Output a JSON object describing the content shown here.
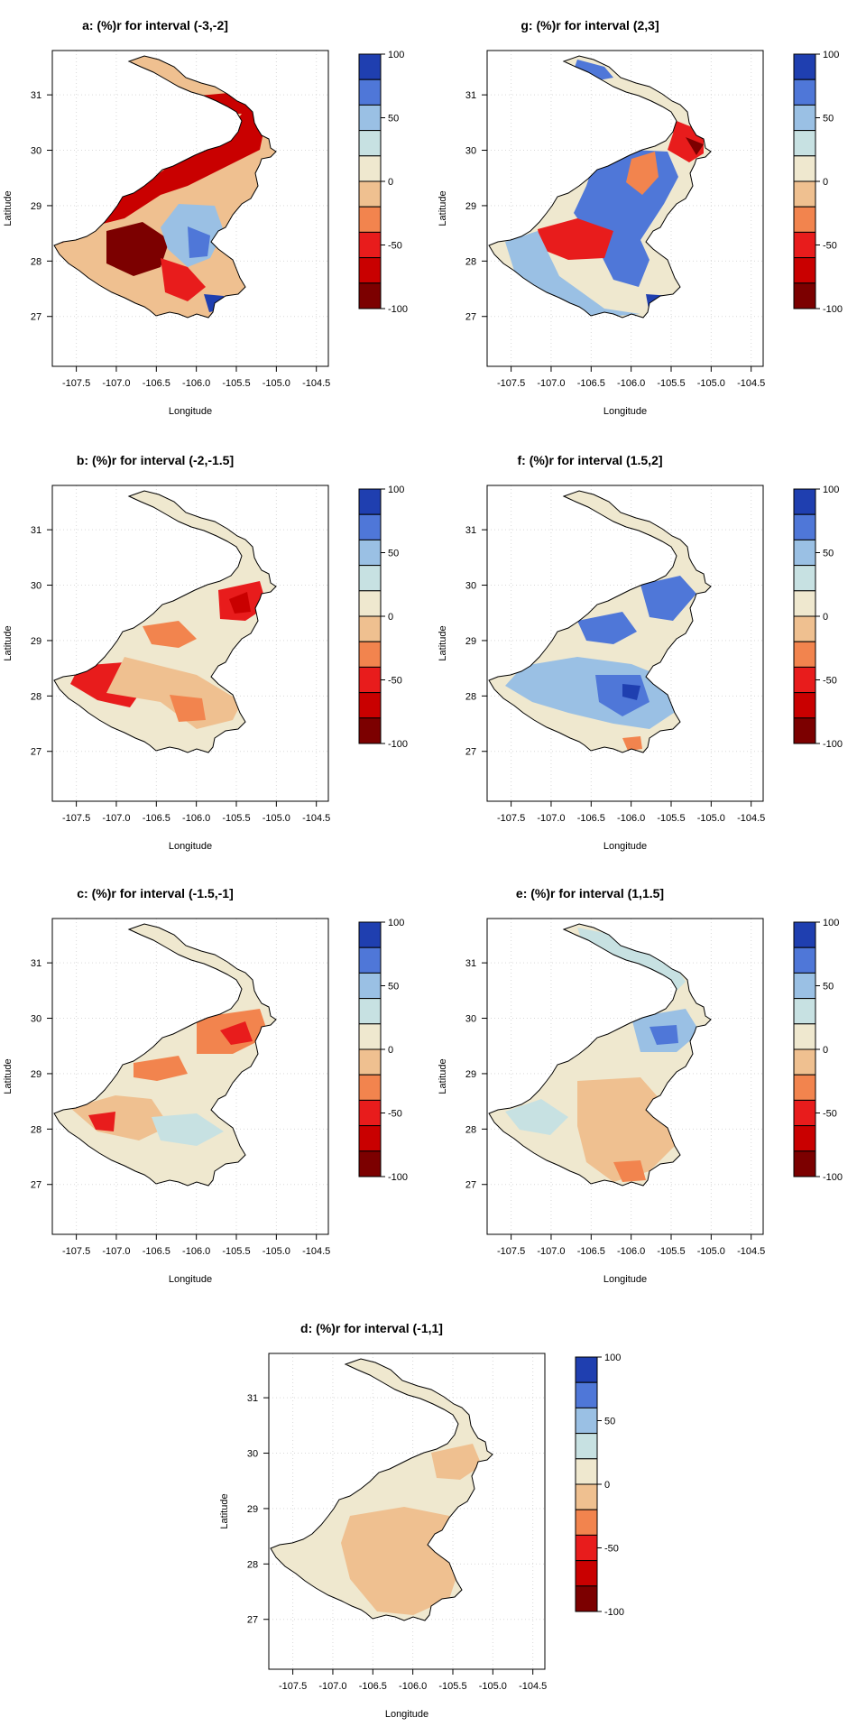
{
  "figure": {
    "xlabel": "Longitude",
    "ylabel": "Latitude",
    "x_ticks": [
      "-107.5",
      "-107.0",
      "-106.5",
      "-106.0",
      "-105.5",
      "-105.0",
      "-104.5"
    ],
    "y_ticks": [
      "27",
      "28",
      "29",
      "30",
      "31"
    ],
    "legend_ticks": [
      "100",
      "50",
      "0",
      "-50",
      "-100"
    ],
    "legend_colors": [
      "#1f3fb0",
      "#4f77d8",
      "#9ac0e4",
      "#c7e1e2",
      "#efe8cf",
      "#efc090",
      "#f2844e",
      "#e81c1c",
      "#c90000",
      "#7c0000"
    ],
    "boundary_color": "#000000"
  },
  "panels": [
    {
      "id": "a",
      "title": "a:   (%)r for interval (-3,-2]"
    },
    {
      "id": "g",
      "title": "g:   (%)r for interval (2,3]"
    },
    {
      "id": "b",
      "title": "b:   (%)r for interval (-2,-1.5]"
    },
    {
      "id": "f",
      "title": "f:   (%)r for interval (1.5,2]"
    },
    {
      "id": "c",
      "title": "c:   (%)r for interval (-1.5,-1]"
    },
    {
      "id": "e",
      "title": "e:   (%)r for interval (1,1.5]"
    },
    {
      "id": "d",
      "title": "d:   (%)r for interval (-1,1]"
    }
  ],
  "chart_data": [
    {
      "type": "heatmap",
      "title": "a:   (%)r for interval (-3,-2]",
      "xlabel": "Longitude",
      "ylabel": "Latitude",
      "xlim": [
        -107.8,
        -104.35
      ],
      "ylim": [
        26.1,
        31.8
      ],
      "color_scale": [
        -100,
        100
      ],
      "color_breaks": [
        -100,
        -80,
        -60,
        -40,
        -20,
        0,
        20,
        40,
        60,
        80,
        100
      ],
      "legend_ticks": [
        100,
        50,
        0,
        -50,
        -100
      ],
      "dominant": "negative, strong red to -100 in north and west; blue patches to +60 in south-centre"
    },
    {
      "type": "heatmap",
      "title": "g:   (%)r for interval (2,3]",
      "xlabel": "Longitude",
      "ylabel": "Latitude",
      "xlim": [
        -107.8,
        -104.35
      ],
      "ylim": [
        26.1,
        31.8
      ],
      "color_scale": [
        -100,
        100
      ],
      "color_breaks": [
        -100,
        -80,
        -60,
        -40,
        -20,
        0,
        20,
        40,
        60,
        80,
        100
      ],
      "legend_ticks": [
        100,
        50,
        0,
        -50,
        -100
      ],
      "dominant": "mixed, blue to +100 in centre and south; red to -100 in north-east"
    },
    {
      "type": "heatmap",
      "title": "b:   (%)r for interval (-2,-1.5]",
      "xlabel": "Longitude",
      "ylabel": "Latitude",
      "xlim": [
        -107.8,
        -104.35
      ],
      "ylim": [
        26.1,
        31.8
      ],
      "color_scale": [
        -100,
        100
      ],
      "color_breaks": [
        -100,
        -80,
        -60,
        -40,
        -20,
        0,
        20,
        40,
        60,
        80,
        100
      ],
      "legend_ticks": [
        100,
        50,
        0,
        -50,
        -100
      ],
      "dominant": "negative, red to -100 in west and north-east"
    },
    {
      "type": "heatmap",
      "title": "f:   (%)r for interval (1.5,2]",
      "xlabel": "Longitude",
      "ylabel": "Latitude",
      "xlim": [
        -107.8,
        -104.35
      ],
      "ylim": [
        26.1,
        31.8
      ],
      "color_scale": [
        -100,
        100
      ],
      "color_breaks": [
        -100,
        -80,
        -60,
        -40,
        -20,
        0,
        20,
        40,
        60,
        80,
        100
      ],
      "legend_ticks": [
        100,
        50,
        0,
        -50,
        -100
      ],
      "dominant": "positive, blue to +80 across centre"
    },
    {
      "type": "heatmap",
      "title": "c:   (%)r for interval (-1.5,-1]",
      "xlabel": "Longitude",
      "ylabel": "Latitude",
      "xlim": [
        -107.8,
        -104.35
      ],
      "ylim": [
        26.1,
        31.8
      ],
      "color_scale": [
        -100,
        100
      ],
      "color_breaks": [
        -100,
        -80,
        -60,
        -40,
        -20,
        0,
        20,
        40,
        60,
        80,
        100
      ],
      "legend_ticks": [
        100,
        50,
        0,
        -50,
        -100
      ],
      "dominant": "negative, red to -80 in north; near zero in south"
    },
    {
      "type": "heatmap",
      "title": "e:   (%)r for interval (1,1.5]",
      "xlabel": "Longitude",
      "ylabel": "Latitude",
      "xlim": [
        -107.8,
        -104.35
      ],
      "ylim": [
        26.1,
        31.8
      ],
      "color_scale": [
        -100,
        100
      ],
      "color_breaks": [
        -100,
        -80,
        -60,
        -40,
        -20,
        0,
        20,
        40,
        60,
        80,
        100
      ],
      "legend_ticks": [
        100,
        50,
        0,
        -50,
        -100
      ],
      "dominant": "weak, light blue to +40 in north; light orange to -40 in south"
    },
    {
      "type": "heatmap",
      "title": "d:   (%)r for interval (-1,1]",
      "xlabel": "Longitude",
      "ylabel": "Latitude",
      "xlim": [
        -107.8,
        -104.35
      ],
      "ylim": [
        26.1,
        31.8
      ],
      "color_scale": [
        -100,
        100
      ],
      "color_breaks": [
        -100,
        -80,
        -60,
        -40,
        -20,
        0,
        20,
        40,
        60,
        80,
        100
      ],
      "legend_ticks": [
        100,
        50,
        0,
        -50,
        -100
      ],
      "dominant": "near zero, pale 0 to -20 throughout"
    }
  ]
}
